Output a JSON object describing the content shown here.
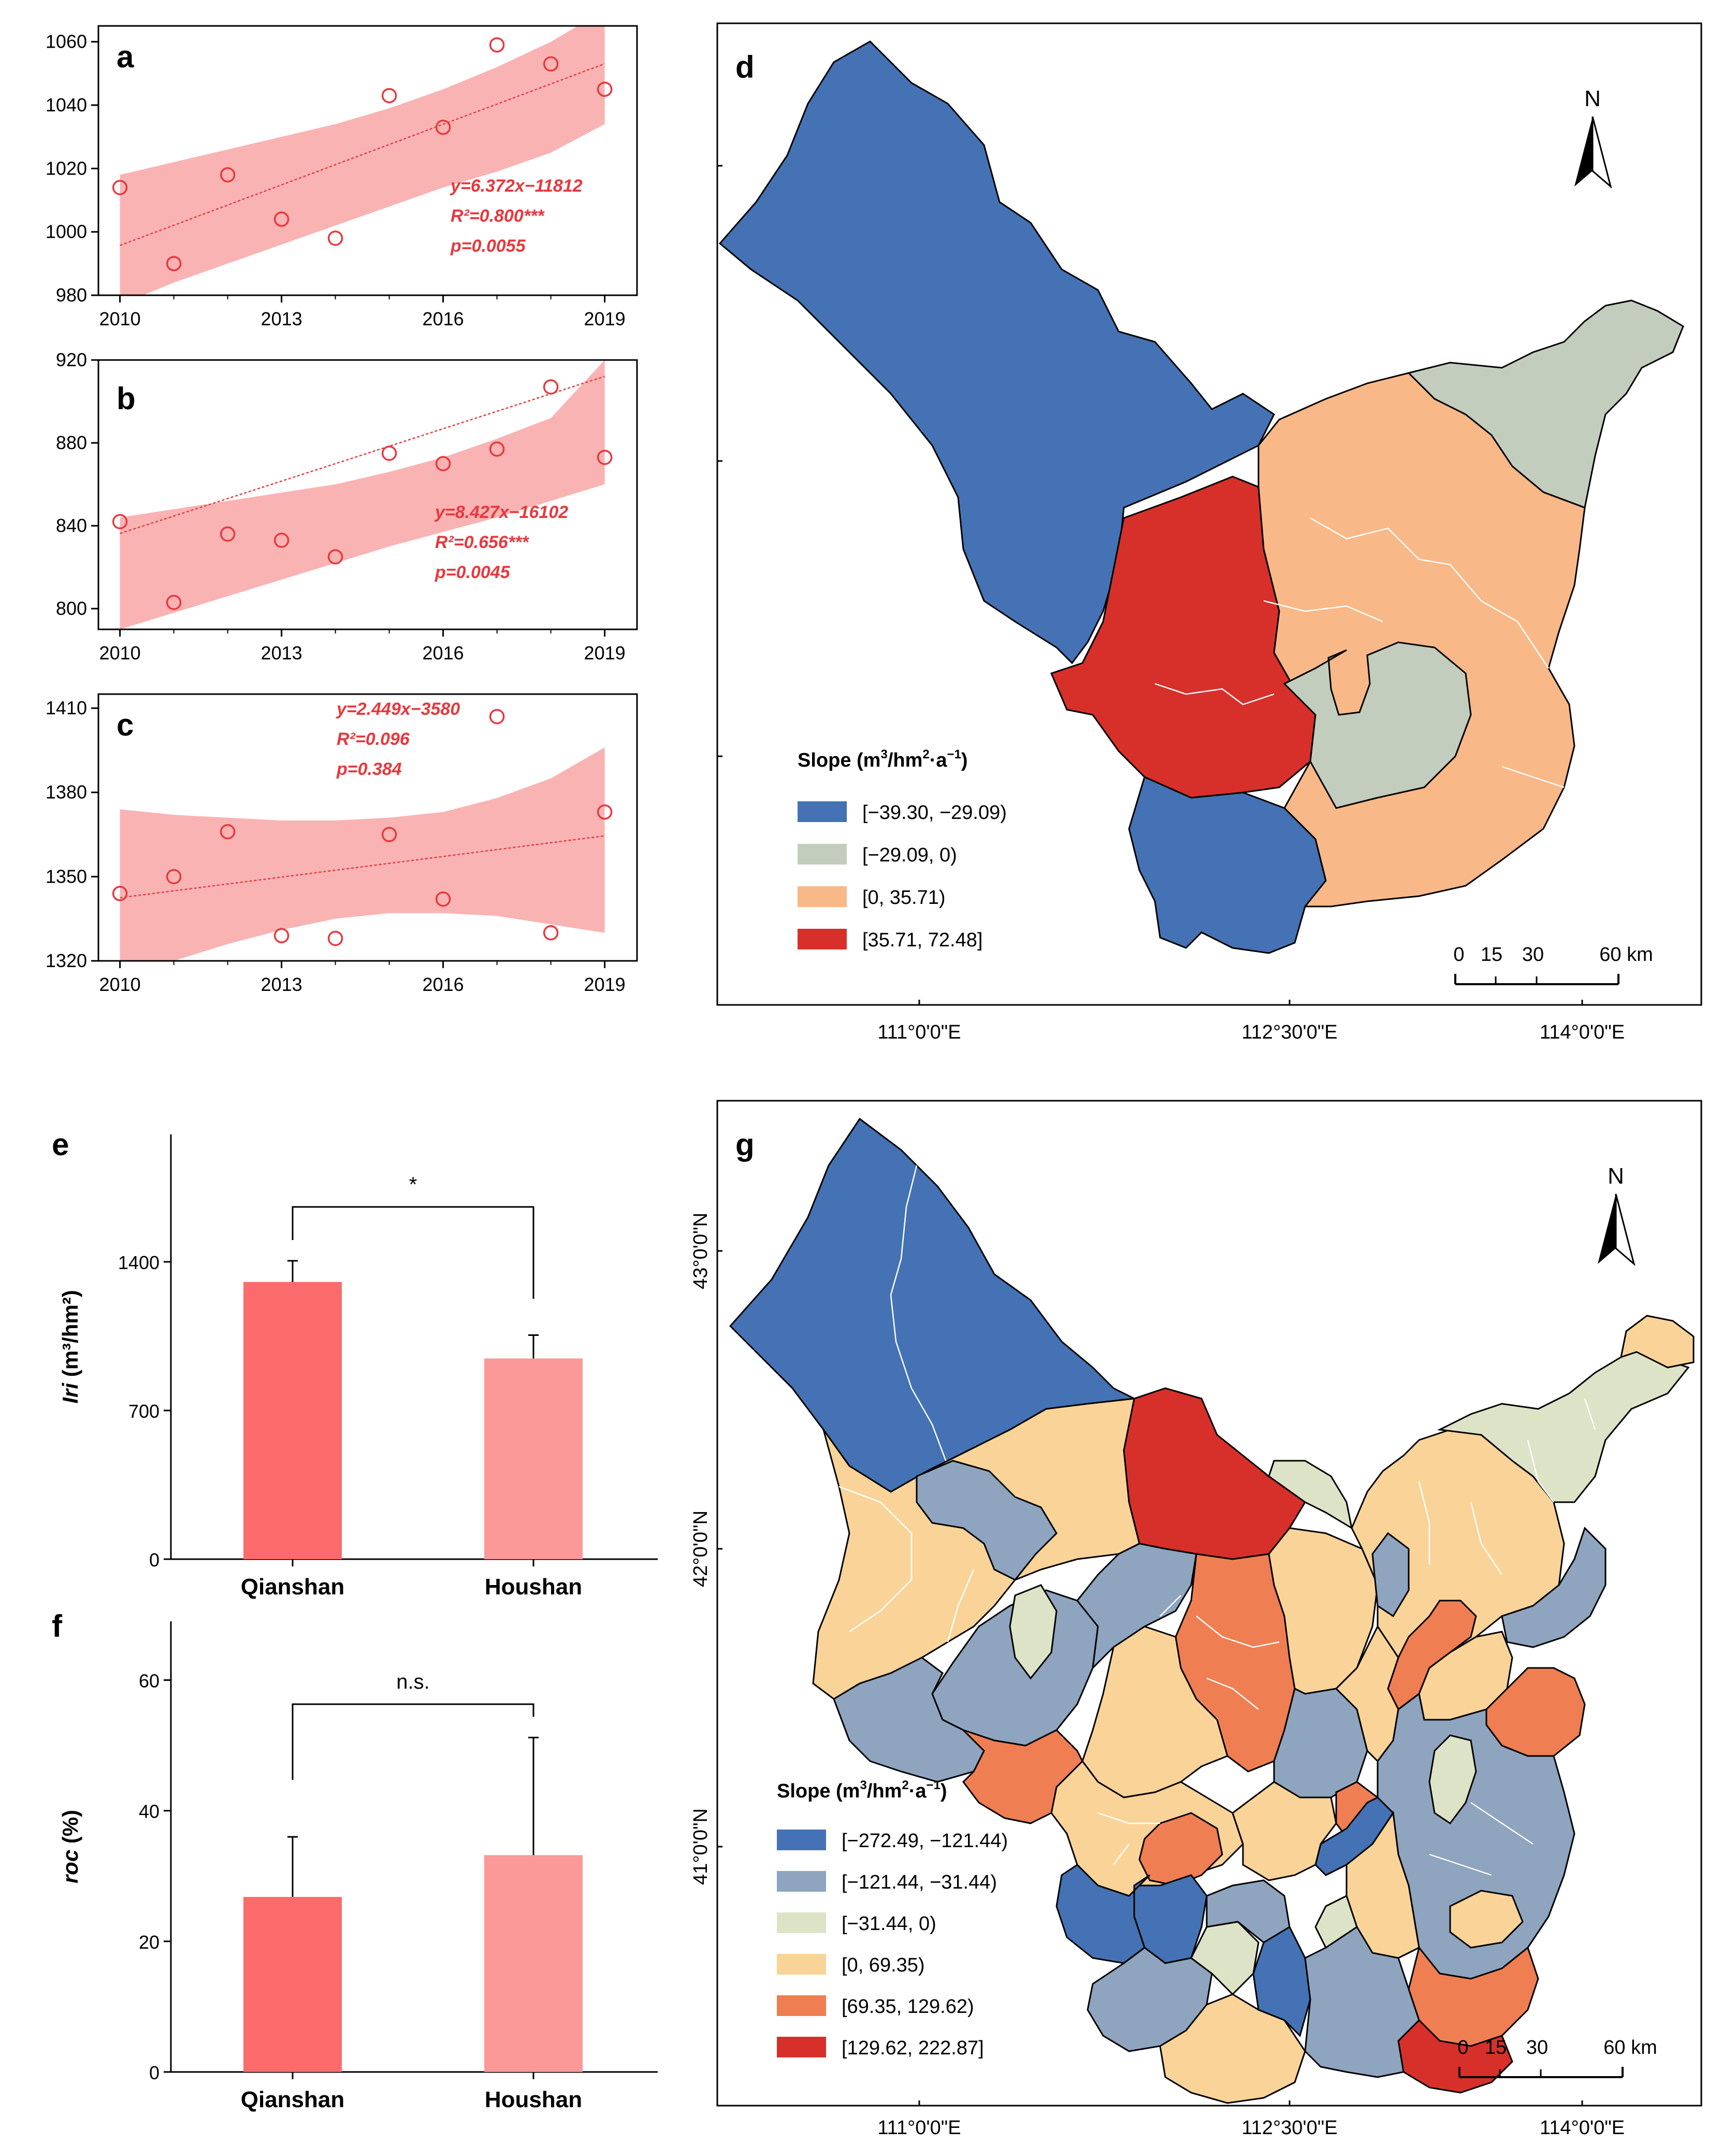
{
  "chart_data": [
    {
      "panel": "a",
      "type": "scatter",
      "x": [
        2010,
        2011,
        2012,
        2013,
        2014,
        2015,
        2016,
        2017,
        2018,
        2019
      ],
      "y": [
        1014,
        990,
        1018,
        1004,
        998,
        1043,
        1033,
        1059,
        1053,
        1045
      ],
      "fit": {
        "slope": 6.372,
        "intercept": -11812,
        "ci_low": [
          977,
          984,
          990,
          996,
          1002,
          1008,
          1014,
          1019,
          1025,
          1034
        ],
        "ci_high": [
          1018,
          1022,
          1026,
          1030,
          1034,
          1039,
          1045,
          1052,
          1060,
          1070
        ]
      },
      "xticks": [
        2010,
        2013,
        2016,
        2019
      ],
      "yticks": [
        980,
        1000,
        1020,
        1040,
        1060
      ],
      "xlim": [
        2009.6,
        2019.6
      ],
      "ylim": [
        980,
        1065
      ],
      "equation": [
        "y=6.372x−11812",
        "R²=0.800***",
        "p=0.0055"
      ]
    },
    {
      "panel": "b",
      "type": "scatter",
      "x": [
        2010,
        2011,
        2012,
        2013,
        2014,
        2015,
        2016,
        2017,
        2018,
        2019
      ],
      "y": [
        842,
        803,
        836,
        833,
        825,
        875,
        870,
        877,
        907,
        873
      ],
      "fit": {
        "slope": 8.427,
        "intercept": -16102,
        "ci_low": [
          790,
          798,
          806,
          814,
          822,
          830,
          837,
          844,
          852,
          860
        ],
        "ci_high": [
          844,
          848,
          852,
          856,
          860,
          866,
          873,
          882,
          892,
          920
        ]
      },
      "xticks": [
        2010,
        2013,
        2016,
        2019
      ],
      "yticks": [
        800,
        840,
        880,
        920
      ],
      "xlim": [
        2009.6,
        2019.6
      ],
      "ylim": [
        790,
        920
      ],
      "equation": [
        "y=8.427x−16102",
        "R²=0.656***",
        "p=0.0045"
      ]
    },
    {
      "panel": "c",
      "type": "scatter",
      "x": [
        2010,
        2011,
        2012,
        2013,
        2014,
        2015,
        2016,
        2017,
        2018,
        2019
      ],
      "y": [
        1344,
        1350,
        1366,
        1329,
        1328,
        1365,
        1342,
        1407,
        1330,
        1373
      ],
      "fit": {
        "slope": 2.449,
        "intercept": -3580,
        "ci_low": [
          1313,
          1320,
          1326,
          1331,
          1335,
          1337,
          1337,
          1336,
          1333,
          1330
        ],
        "ci_high": [
          1374,
          1372,
          1371,
          1370,
          1370,
          1371,
          1373,
          1378,
          1385,
          1396
        ]
      },
      "xticks": [
        2010,
        2013,
        2016,
        2019
      ],
      "yticks": [
        1320,
        1350,
        1380,
        1410
      ],
      "xlim": [
        2009.6,
        2019.6
      ],
      "ylim": [
        1320,
        1415
      ],
      "equation": [
        "y=2.449x−3580",
        "R²=0.096",
        "p=0.384"
      ]
    },
    {
      "panel": "e",
      "type": "bar",
      "categories": [
        "Qianshan",
        "Houshan"
      ],
      "values": [
        1305,
        945
      ],
      "errors": [
        100,
        110
      ],
      "ylabel_var": "Iri",
      "ylabel_unit": "(m³/hm²)",
      "yticks": [
        0,
        700,
        1400
      ],
      "ylim": [
        0,
        2000
      ],
      "significance": "*",
      "colors": [
        "#fc6b6b",
        "#fb9898"
      ]
    },
    {
      "panel": "f",
      "type": "bar",
      "categories": [
        "Qianshan",
        "Houshan"
      ],
      "values": [
        26.8,
        33.2
      ],
      "errors": [
        9.2,
        18.0
      ],
      "ylabel_var": "roc",
      "ylabel_unit": "(%)",
      "yticks": [
        0,
        20,
        40,
        60
      ],
      "ylim": [
        0,
        69
      ],
      "significance": "n.s.",
      "colors": [
        "#fc6b6b",
        "#fb9898"
      ]
    }
  ],
  "maps": {
    "d": {
      "label": "d",
      "legend_title": "Slope (m³/hm²·a⁻¹)",
      "classes": [
        {
          "range": "[−39.30, −29.09)",
          "color": "#4472b4"
        },
        {
          "range": "[−29.09, 0)",
          "color": "#c3cdbd"
        },
        {
          "range": "[0, 35.71)",
          "color": "#f9b887"
        },
        {
          "range": "[35.71, 72.48]",
          "color": "#d7302b"
        }
      ],
      "north": "N",
      "scale": [
        "0",
        "15",
        "30",
        "60 km"
      ],
      "lon_ticks": [
        "111°0'0\"E",
        "112°30'0\"E",
        "114°0'0\"E"
      ]
    },
    "g": {
      "label": "g",
      "legend_title": "Slope (m³/hm²·a⁻¹)",
      "classes": [
        {
          "range": "[−272.49, −121.44)",
          "color": "#4472b4"
        },
        {
          "range": "[−121.44, −31.44)",
          "color": "#8ea4bf"
        },
        {
          "range": "[−31.44, 0)",
          "color": "#dde3c6"
        },
        {
          "range": "[0, 69.35)",
          "color": "#fad398"
        },
        {
          "range": "[69.35, 129.62)",
          "color": "#ef7e52"
        },
        {
          "range": "[129.62, 222.87]",
          "color": "#d7302b"
        }
      ],
      "north": "N",
      "scale": [
        "0",
        "15",
        "30",
        "60 km"
      ],
      "lon_ticks": [
        "111°0'0\"E",
        "112°30'0\"E",
        "114°0'0\"E"
      ],
      "lat_ticks": [
        "43°0'0\"N",
        "42°0'0\"N",
        "41°0'0\"N"
      ]
    }
  }
}
